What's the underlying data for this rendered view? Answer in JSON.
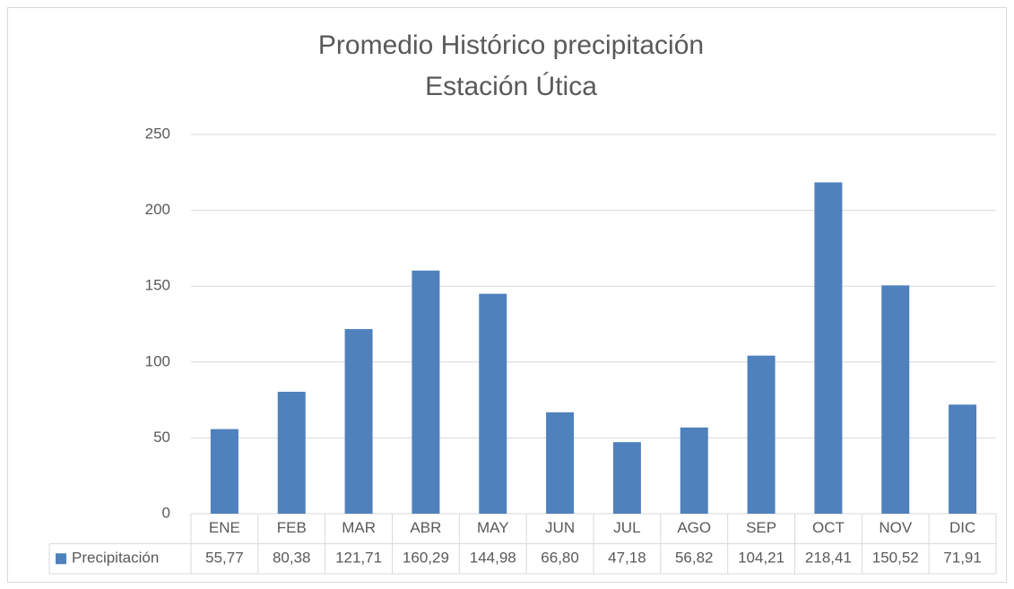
{
  "chart_data": {
    "type": "bar",
    "title": [
      "Promedio Histórico precipitación",
      "Estación Útica"
    ],
    "categories": [
      "ENE",
      "FEB",
      "MAR",
      "ABR",
      "MAY",
      "JUN",
      "JUL",
      "AGO",
      "SEP",
      "OCT",
      "NOV",
      "DIC"
    ],
    "series": [
      {
        "name": "Precipitación",
        "color": "#4f81bd",
        "values": [
          55.77,
          80.38,
          121.71,
          160.29,
          144.98,
          66.8,
          47.18,
          56.82,
          104.21,
          218.41,
          150.52,
          71.91
        ],
        "value_labels": [
          "55,77",
          "80,38",
          "121,71",
          "160,29",
          "144,98",
          "66,80",
          "47,18",
          "56,82",
          "104,21",
          "218,41",
          "150,52",
          "71,91"
        ]
      }
    ],
    "ylim": [
      0,
      250
    ],
    "yticks": [
      0,
      50,
      100,
      150,
      200,
      250
    ],
    "grid": true
  }
}
